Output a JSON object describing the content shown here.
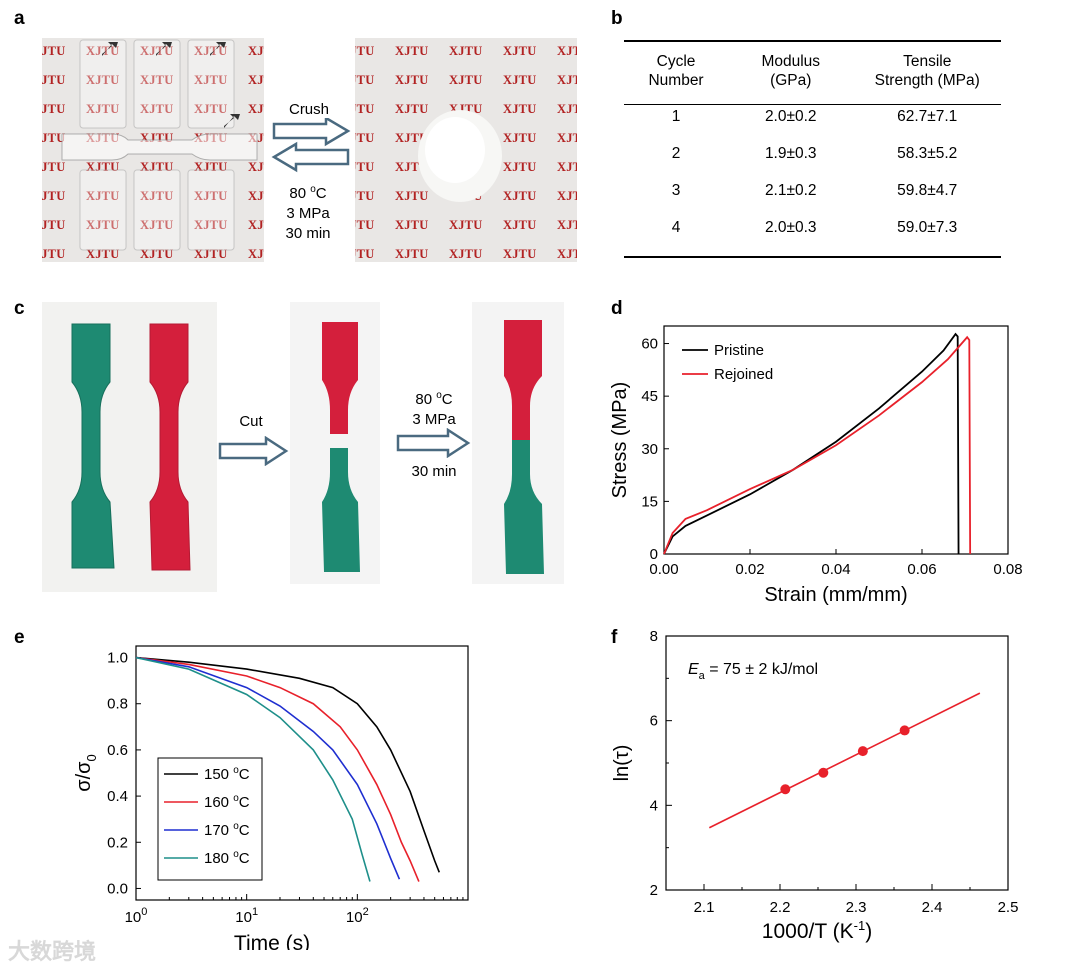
{
  "panel_labels": {
    "a": "a",
    "b": "b",
    "c": "c",
    "d": "d",
    "e": "e",
    "f": "f"
  },
  "panel_a": {
    "background_text": "XJTU",
    "arrow_top": "Crush",
    "condition_line1_base": "80 ",
    "condition_line1_sup": "o",
    "condition_line1_unit": "C",
    "condition_line2": "3 MPa",
    "condition_line3": "30 min"
  },
  "table_b": {
    "headers": [
      [
        "Cycle",
        "Number"
      ],
      [
        "Modulus",
        "(GPa)"
      ],
      [
        "Tensile",
        "Strength (MPa)"
      ]
    ],
    "rows": [
      [
        "1",
        "2.0±0.2",
        "62.7±7.1"
      ],
      [
        "2",
        "1.9±0.3",
        "58.3±5.2"
      ],
      [
        "3",
        "2.1±0.2",
        "59.8±4.7"
      ],
      [
        "4",
        "2.0±0.3",
        "59.0±7.3"
      ]
    ]
  },
  "panel_c": {
    "arrow1_label": "Cut",
    "condition_line1_base": "80 ",
    "condition_line1_sup": "o",
    "condition_line1_unit": "C",
    "condition_line2": "3 MPa",
    "condition_line3": "30 min",
    "colors": {
      "red": "#d41f3c",
      "green": "#1e8a72"
    }
  },
  "watermark": "大数跨境",
  "chart_data": [
    {
      "panel": "d",
      "type": "line",
      "xlabel": "Strain (mm/mm)",
      "ylabel": "Stress (MPa)",
      "xlim": [
        0,
        0.08
      ],
      "ylim": [
        0,
        65
      ],
      "xticks": [
        "0.00",
        "0.02",
        "0.04",
        "0.06",
        "0.08"
      ],
      "xtick_values": [
        0,
        0.02,
        0.04,
        0.06,
        0.08
      ],
      "yticks": [
        "0",
        "15",
        "30",
        "45",
        "60"
      ],
      "ytick_values": [
        0,
        15,
        30,
        45,
        60
      ],
      "legend_position": "top-left",
      "series": [
        {
          "name": "Pristine",
          "color": "#000000",
          "x": [
            0,
            0.002,
            0.005,
            0.01,
            0.02,
            0.03,
            0.04,
            0.05,
            0.06,
            0.065,
            0.0678,
            0.0683,
            0.0685
          ],
          "y": [
            0,
            5,
            8,
            11,
            17,
            24,
            32,
            41.5,
            52,
            58,
            62.7,
            62,
            0
          ]
        },
        {
          "name": "Rejoined",
          "color": "#e8212b",
          "x": [
            0,
            0.002,
            0.005,
            0.01,
            0.02,
            0.03,
            0.04,
            0.05,
            0.06,
            0.066,
            0.0705,
            0.071,
            0.0712
          ],
          "y": [
            0,
            6,
            10,
            12.5,
            18.5,
            24,
            31,
            39.5,
            49,
            55.5,
            61.8,
            61,
            0
          ]
        }
      ]
    },
    {
      "panel": "e",
      "type": "line",
      "xlabel": "Time (s)",
      "ylabel_main": "σ/σ",
      "ylabel_sub": "0",
      "xscale": "log",
      "xlim": [
        1,
        1000
      ],
      "ylim": [
        -0.05,
        1.05
      ],
      "xticks_base": [
        "10",
        "10",
        "10"
      ],
      "xticks_exp": [
        "0",
        "1",
        "2"
      ],
      "xtick_values": [
        1,
        10,
        100
      ],
      "yticks": [
        "0.0",
        "0.2",
        "0.4",
        "0.6",
        "0.8",
        "1.0"
      ],
      "ytick_values": [
        0,
        0.2,
        0.4,
        0.6,
        0.8,
        1.0
      ],
      "legend_position": "bottom-left",
      "legend_unit_sup": "o",
      "legend_unit": "C",
      "series": [
        {
          "name": "150",
          "color": "#000000",
          "x": [
            1,
            3,
            10,
            30,
            60,
            100,
            150,
            200,
            300,
            400,
            500,
            550
          ],
          "y": [
            1.0,
            0.98,
            0.95,
            0.91,
            0.87,
            0.8,
            0.7,
            0.6,
            0.42,
            0.25,
            0.12,
            0.07
          ]
        },
        {
          "name": "160",
          "color": "#e8212b",
          "x": [
            1,
            3,
            10,
            20,
            40,
            70,
            100,
            150,
            200,
            250,
            300,
            360
          ],
          "y": [
            1.0,
            0.97,
            0.92,
            0.87,
            0.8,
            0.7,
            0.6,
            0.45,
            0.32,
            0.2,
            0.12,
            0.03
          ]
        },
        {
          "name": "170",
          "color": "#1f2fd0",
          "x": [
            1,
            3,
            10,
            20,
            40,
            60,
            100,
            150,
            200,
            240
          ],
          "y": [
            1.0,
            0.96,
            0.87,
            0.79,
            0.68,
            0.6,
            0.45,
            0.28,
            0.13,
            0.04
          ]
        },
        {
          "name": "180",
          "color": "#1e8f8a",
          "x": [
            1,
            3,
            10,
            20,
            40,
            60,
            90,
            110,
            130
          ],
          "y": [
            1.0,
            0.95,
            0.84,
            0.74,
            0.6,
            0.47,
            0.3,
            0.15,
            0.03
          ]
        }
      ]
    },
    {
      "panel": "f",
      "type": "scatter",
      "xlabel_main": "1000/T (K",
      "xlabel_sup": "-1",
      "xlabel_close": ")",
      "ylabel": "ln(τ)",
      "xlim": [
        2.05,
        2.5
      ],
      "ylim": [
        2,
        8
      ],
      "xticks": [
        "2.1",
        "2.2",
        "2.3",
        "2.4",
        "2.5"
      ],
      "xtick_values": [
        2.1,
        2.2,
        2.3,
        2.4,
        2.5
      ],
      "yticks": [
        "2",
        "4",
        "6",
        "8"
      ],
      "ytick_values": [
        2,
        4,
        6,
        8
      ],
      "annotation_main": "E",
      "annotation_sub": "a",
      "annotation_rest": " = 75 ± 2 kJ/mol",
      "color": "#e8212b",
      "points": {
        "x": [
          2.207,
          2.257,
          2.309,
          2.364
        ],
        "y": [
          4.38,
          4.77,
          5.28,
          5.77
        ]
      },
      "fit_line": {
        "x": [
          2.107,
          2.463
        ],
        "y": [
          3.47,
          6.65
        ]
      }
    }
  ]
}
